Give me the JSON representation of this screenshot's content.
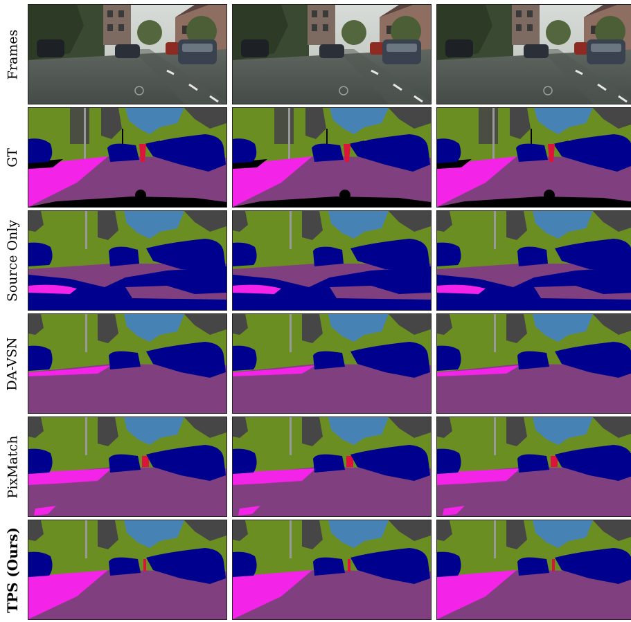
{
  "rows": [
    {
      "label": "Frames",
      "bold": false,
      "kind": "photo"
    },
    {
      "label": "GT",
      "bold": false,
      "kind": "gt"
    },
    {
      "label": "Source Only",
      "bold": false,
      "kind": "source"
    },
    {
      "label": "DA-VSN",
      "bold": false,
      "kind": "davsn"
    },
    {
      "label": "PixMatch",
      "bold": false,
      "kind": "pixmatch"
    },
    {
      "label": "TPS (Ours)",
      "bold": true,
      "kind": "tps"
    }
  ],
  "columns": 3,
  "palette": {
    "vegetation": "#6b8e23",
    "building": "#464646",
    "sky": "#4682b4",
    "car": "#00008e",
    "road": "#804080",
    "sidewalk": "#f423e8",
    "pole": "#999999",
    "person": "#dc143c",
    "sign": "#dcdc00",
    "void": "#000000"
  }
}
